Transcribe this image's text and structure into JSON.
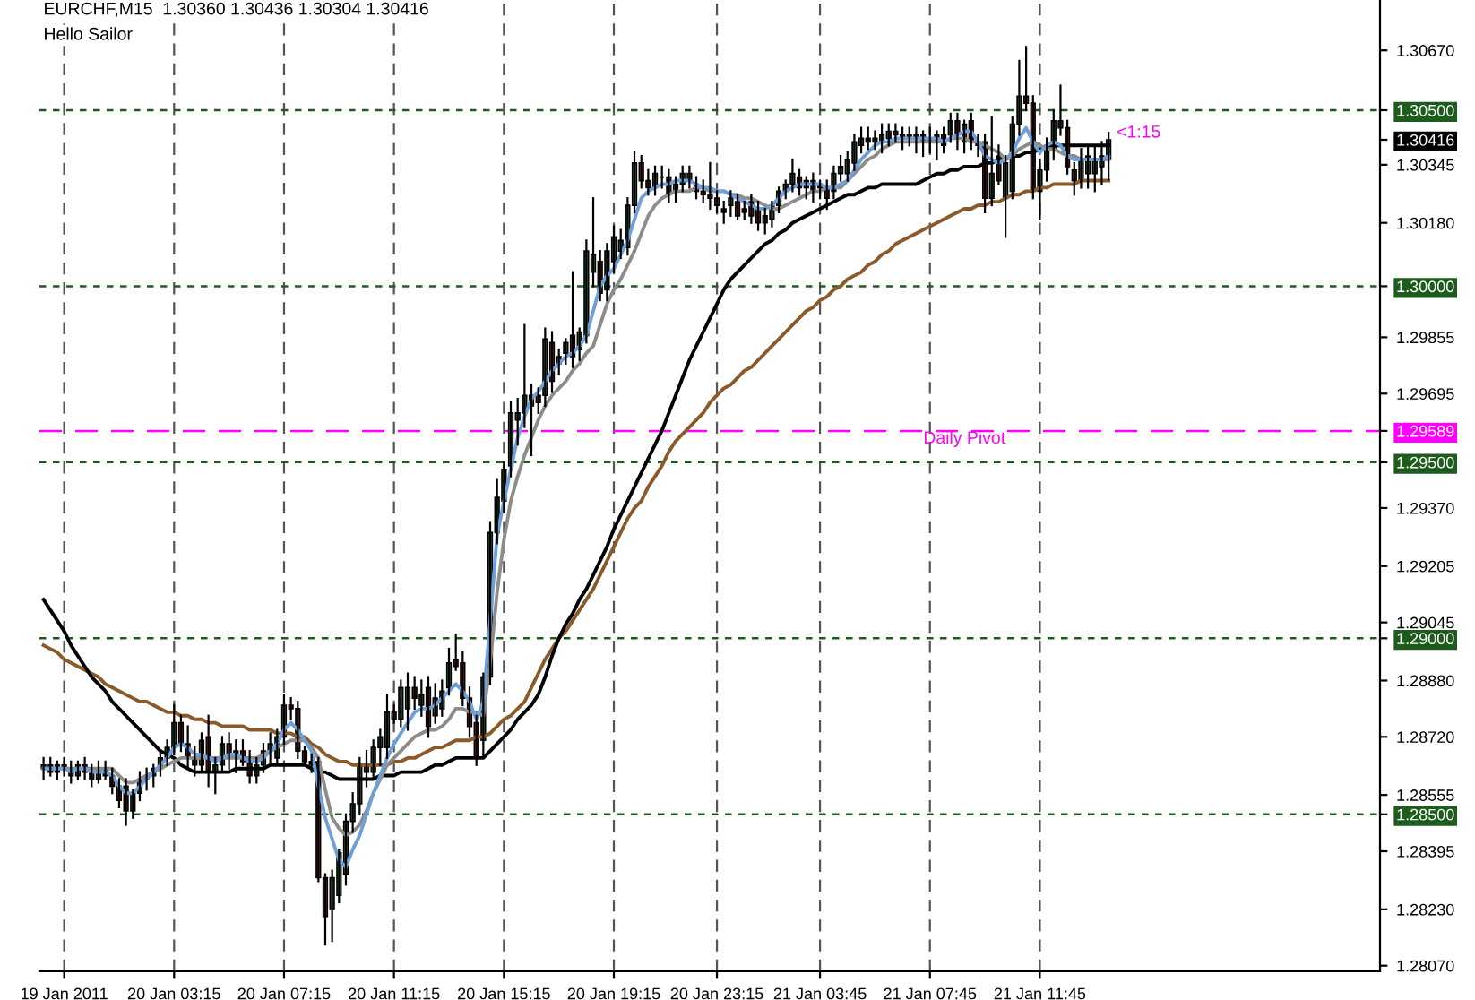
{
  "chart_data": {
    "type": "candlestick",
    "title": "EURCHF,M15  1.30360 1.30436 1.30304 1.30416",
    "subtitle": "Hello Sailor",
    "annotations": [
      "<1:15"
    ],
    "categories": [
      null,
      null,
      null,
      "19 Jan 2011",
      null,
      null,
      null,
      null,
      null,
      null,
      null,
      null,
      null,
      null,
      null,
      null,
      null,
      null,
      null,
      "20 Jan 03:15",
      null,
      null,
      null,
      null,
      null,
      null,
      null,
      null,
      null,
      null,
      null,
      null,
      null,
      null,
      null,
      "20 Jan 07:15",
      null,
      null,
      null,
      null,
      null,
      null,
      null,
      null,
      null,
      null,
      null,
      null,
      null,
      null,
      null,
      "20 Jan 11:15",
      null,
      null,
      null,
      null,
      null,
      null,
      null,
      null,
      null,
      null,
      null,
      null,
      null,
      null,
      null,
      "20 Jan 15:15",
      null,
      null,
      null,
      null,
      null,
      null,
      null,
      null,
      null,
      null,
      null,
      null,
      null,
      null,
      null,
      "20 Jan 19:15",
      null,
      null,
      null,
      null,
      null,
      null,
      null,
      null,
      null,
      null,
      null,
      null,
      null,
      null,
      "20 Jan 23:15",
      null,
      null,
      null,
      null,
      null,
      null,
      null,
      null,
      null,
      null,
      null,
      null,
      null,
      null,
      "21 Jan 03:45",
      null,
      null,
      null,
      null,
      null,
      null,
      null,
      null,
      null,
      null,
      null,
      null,
      null,
      null,
      null,
      "21 Jan 07:45",
      null,
      null,
      null,
      null,
      null,
      null,
      null,
      null,
      null,
      null,
      null,
      null,
      null,
      null,
      null,
      "21 Jan 11:45",
      null,
      null,
      null,
      null,
      null,
      null,
      null,
      null,
      null,
      null,
      null,
      null,
      null,
      null,
      null,
      null,
      null,
      null,
      null,
      null,
      null,
      null,
      null,
      null,
      null,
      null,
      null,
      null,
      null,
      null,
      null,
      null,
      null,
      null,
      null,
      null,
      null,
      null,
      null,
      null,
      null,
      null,
      null,
      null,
      null,
      null,
      null,
      null,
      null
    ],
    "ohlc": [
      [
        1.2863,
        1.2866,
        1.286,
        1.2864
      ],
      [
        1.2864,
        1.2866,
        1.2861,
        1.2862
      ],
      [
        1.2862,
        1.2865,
        1.286,
        1.2864
      ],
      [
        1.2864,
        1.2866,
        1.2861,
        1.2863
      ],
      [
        1.2863,
        1.2865,
        1.2859,
        1.2861
      ],
      [
        1.2861,
        1.2865,
        1.286,
        1.2864
      ],
      [
        1.2864,
        1.2866,
        1.286,
        1.2862
      ],
      [
        1.2862,
        1.2864,
        1.2858,
        1.286
      ],
      [
        1.286,
        1.2865,
        1.2859,
        1.2863
      ],
      [
        1.2863,
        1.2865,
        1.286,
        1.2861
      ],
      [
        1.2861,
        1.2863,
        1.2856,
        1.2858
      ],
      [
        1.2858,
        1.286,
        1.2852,
        1.2854
      ],
      [
        1.2858,
        1.286,
        1.2847,
        1.2851
      ],
      [
        1.2851,
        1.2857,
        1.2849,
        1.2856
      ],
      [
        1.2856,
        1.2862,
        1.2854,
        1.286
      ],
      [
        1.286,
        1.2863,
        1.2857,
        1.2861
      ],
      [
        1.2861,
        1.2864,
        1.2858,
        1.2863
      ],
      [
        1.2863,
        1.2868,
        1.2861,
        1.2866
      ],
      [
        1.2866,
        1.2871,
        1.2864,
        1.2869
      ],
      [
        1.2869,
        1.2881,
        1.2867,
        1.2876
      ],
      [
        1.2876,
        1.2878,
        1.2868,
        1.287
      ],
      [
        1.287,
        1.2875,
        1.2863,
        1.2866
      ],
      [
        1.2866,
        1.2869,
        1.2861,
        1.2864
      ],
      [
        1.2864,
        1.2873,
        1.2862,
        1.2871
      ],
      [
        1.2872,
        1.2878,
        1.2858,
        1.2862
      ],
      [
        1.2862,
        1.2866,
        1.2856,
        1.2864
      ],
      [
        1.2864,
        1.2872,
        1.2862,
        1.287
      ],
      [
        1.287,
        1.2873,
        1.2863,
        1.2866
      ],
      [
        1.2866,
        1.2871,
        1.2862,
        1.2868
      ],
      [
        1.2868,
        1.2871,
        1.2864,
        1.2865
      ],
      [
        1.2865,
        1.2868,
        1.2859,
        1.2861
      ],
      [
        1.2861,
        1.2866,
        1.2859,
        1.2864
      ],
      [
        1.2864,
        1.287,
        1.2862,
        1.2868
      ],
      [
        1.2868,
        1.2873,
        1.2865,
        1.287
      ],
      [
        1.2866,
        1.2874,
        1.2864,
        1.2872
      ],
      [
        1.2872,
        1.2884,
        1.287,
        1.2881
      ],
      [
        1.2881,
        1.2883,
        1.2877,
        1.288
      ],
      [
        1.288,
        1.2882,
        1.2866,
        1.2868
      ],
      [
        1.2868,
        1.2869,
        1.2864,
        1.2865
      ],
      [
        1.2865,
        1.2867,
        1.2862,
        1.2864
      ],
      [
        1.2865,
        1.2866,
        1.2831,
        1.2832
      ],
      [
        1.2832,
        1.2833,
        1.2813,
        1.2821
      ],
      [
        1.2823,
        1.2834,
        1.2814,
        1.2832
      ],
      [
        1.2827,
        1.284,
        1.2825,
        1.2839
      ],
      [
        1.2833,
        1.285,
        1.283,
        1.2848
      ],
      [
        1.2848,
        1.2856,
        1.2845,
        1.2853
      ],
      [
        1.2853,
        1.2866,
        1.285,
        1.2864
      ],
      [
        1.2864,
        1.2868,
        1.2858,
        1.2862
      ],
      [
        1.2862,
        1.2871,
        1.286,
        1.2869
      ],
      [
        1.2869,
        1.2874,
        1.2864,
        1.2872
      ],
      [
        1.2869,
        1.2884,
        1.2866,
        1.2879
      ],
      [
        1.2879,
        1.2881,
        1.2876,
        1.2877
      ],
      [
        1.2877,
        1.2888,
        1.2875,
        1.2886
      ],
      [
        1.288,
        1.289,
        1.2874,
        1.2886
      ],
      [
        1.2886,
        1.2889,
        1.288,
        1.2883
      ],
      [
        1.2881,
        1.2888,
        1.2878,
        1.2884
      ],
      [
        1.2886,
        1.2889,
        1.2872,
        1.2875
      ],
      [
        1.2878,
        1.2887,
        1.2876,
        1.2883
      ],
      [
        1.288,
        1.2888,
        1.2878,
        1.2885
      ],
      [
        1.2886,
        1.2897,
        1.2884,
        1.2893
      ],
      [
        1.2894,
        1.2901,
        1.2891,
        1.2892
      ],
      [
        1.2893,
        1.2896,
        1.2881,
        1.2883
      ],
      [
        1.2883,
        1.2886,
        1.2872,
        1.2875
      ],
      [
        1.2876,
        1.2878,
        1.2864,
        1.2866
      ],
      [
        1.2871,
        1.289,
        1.2866,
        1.2889
      ],
      [
        1.2889,
        1.2933,
        1.2887,
        1.293
      ],
      [
        1.293,
        1.2945,
        1.2927,
        1.294
      ],
      [
        1.2939,
        1.295,
        1.2936,
        1.2948
      ],
      [
        1.2949,
        1.2967,
        1.2946,
        1.2964
      ],
      [
        1.2962,
        1.2968,
        1.2955,
        1.2964
      ],
      [
        1.2964,
        1.2989,
        1.296,
        1.2969
      ],
      [
        1.2966,
        1.2972,
        1.2952,
        1.2969
      ],
      [
        1.2969,
        1.2971,
        1.2964,
        1.2967
      ],
      [
        1.2969,
        1.2988,
        1.2966,
        1.2985
      ],
      [
        1.2984,
        1.2987,
        1.297,
        1.2973
      ],
      [
        1.2978,
        1.2982,
        1.2975,
        1.298
      ],
      [
        1.2981,
        1.2985,
        1.2978,
        1.2984
      ],
      [
        1.2986,
        1.3004,
        1.2977,
        1.298
      ],
      [
        1.2982,
        1.2988,
        1.2979,
        1.2987
      ],
      [
        1.2986,
        1.3013,
        1.2984,
        1.301
      ],
      [
        1.3004,
        1.3025,
        1.3,
        1.3009
      ],
      [
        1.3007,
        1.301,
        1.2996,
        1.2998
      ],
      [
        1.2999,
        1.3012,
        1.2996,
        1.301
      ],
      [
        1.3007,
        1.3017,
        1.3004,
        1.3014
      ],
      [
        1.301,
        1.3016,
        1.3008,
        1.3013
      ],
      [
        1.3011,
        1.3025,
        1.3009,
        1.3023
      ],
      [
        1.3023,
        1.3038,
        1.3021,
        1.3035
      ],
      [
        1.3035,
        1.3037,
        1.3028,
        1.303
      ],
      [
        1.303,
        1.3033,
        1.3026,
        1.3028
      ],
      [
        1.3028,
        1.3034,
        1.3026,
        1.3032
      ],
      [
        1.3031,
        1.3034,
        1.3028,
        1.3031
      ],
      [
        1.3031,
        1.3033,
        1.3024,
        1.3026
      ],
      [
        1.3027,
        1.3031,
        1.3024,
        1.3029
      ],
      [
        1.3029,
        1.3034,
        1.3027,
        1.3032
      ],
      [
        1.303,
        1.3034,
        1.3028,
        1.3032
      ],
      [
        1.3029,
        1.3031,
        1.3025,
        1.3027
      ],
      [
        1.3027,
        1.303,
        1.3024,
        1.3026
      ],
      [
        1.3026,
        1.3035,
        1.3022,
        1.3025
      ],
      [
        1.3025,
        1.3027,
        1.3021,
        1.3023
      ],
      [
        1.3022,
        1.3024,
        1.3018,
        1.3021
      ],
      [
        1.3023,
        1.3027,
        1.302,
        1.3025
      ],
      [
        1.3024,
        1.3026,
        1.3019,
        1.302
      ],
      [
        1.3022,
        1.3024,
        1.3019,
        1.3021
      ],
      [
        1.3024,
        1.3026,
        1.3018,
        1.302
      ],
      [
        1.3022,
        1.3024,
        1.3016,
        1.3018
      ],
      [
        1.302,
        1.3022,
        1.3015,
        1.3018
      ],
      [
        1.3019,
        1.3024,
        1.3017,
        1.3023
      ],
      [
        1.3023,
        1.3028,
        1.3021,
        1.3027
      ],
      [
        1.3027,
        1.303,
        1.3025,
        1.3029
      ],
      [
        1.3029,
        1.3036,
        1.3027,
        1.3032
      ],
      [
        1.3031,
        1.3033,
        1.3026,
        1.3028
      ],
      [
        1.3028,
        1.3031,
        1.3025,
        1.303
      ],
      [
        1.303,
        1.3032,
        1.3024,
        1.3027
      ],
      [
        1.3028,
        1.303,
        1.3025,
        1.3029
      ],
      [
        1.3028,
        1.303,
        1.3022,
        1.3025
      ],
      [
        1.3027,
        1.3034,
        1.3025,
        1.3032
      ],
      [
        1.3032,
        1.3037,
        1.303,
        1.3034
      ],
      [
        1.3032,
        1.3038,
        1.303,
        1.3036
      ],
      [
        1.3035,
        1.3043,
        1.3033,
        1.3041
      ],
      [
        1.304,
        1.3045,
        1.3038,
        1.3042
      ],
      [
        1.3042,
        1.3045,
        1.3039,
        1.3041
      ],
      [
        1.3041,
        1.3044,
        1.3039,
        1.3042
      ],
      [
        1.3041,
        1.3046,
        1.3038,
        1.3043
      ],
      [
        1.3042,
        1.3046,
        1.304,
        1.3044
      ],
      [
        1.3044,
        1.3046,
        1.3041,
        1.3043
      ],
      [
        1.3042,
        1.3045,
        1.3039,
        1.3043
      ],
      [
        1.3043,
        1.3045,
        1.304,
        1.3042
      ],
      [
        1.3042,
        1.3045,
        1.3038,
        1.3043
      ],
      [
        1.3041,
        1.3044,
        1.3037,
        1.3043
      ],
      [
        1.3042,
        1.3045,
        1.3038,
        1.3041
      ],
      [
        1.3041,
        1.3044,
        1.3036,
        1.3043
      ],
      [
        1.3043,
        1.3045,
        1.3038,
        1.304
      ],
      [
        1.3043,
        1.3049,
        1.3041,
        1.3047
      ],
      [
        1.3047,
        1.3049,
        1.3039,
        1.3043
      ],
      [
        1.3041,
        1.3047,
        1.3038,
        1.3046
      ],
      [
        1.3047,
        1.3049,
        1.3039,
        1.3041
      ],
      [
        1.3041,
        1.3043,
        1.3037,
        1.304
      ],
      [
        1.3041,
        1.3043,
        1.3021,
        1.3025
      ],
      [
        1.3025,
        1.3048,
        1.3023,
        1.3032
      ],
      [
        1.3037,
        1.304,
        1.3029,
        1.303
      ],
      [
        1.3025,
        1.3037,
        1.3014,
        1.3035
      ],
      [
        1.3027,
        1.3048,
        1.3025,
        1.3046
      ],
      [
        1.3046,
        1.3064,
        1.3043,
        1.3054
      ],
      [
        1.3054,
        1.3068,
        1.305,
        1.3052
      ],
      [
        1.3052,
        1.3054,
        1.3025,
        1.3027
      ],
      [
        1.3027,
        1.3036,
        1.3019,
        1.3033
      ],
      [
        1.3033,
        1.3042,
        1.303,
        1.304
      ],
      [
        1.3039,
        1.305,
        1.3036,
        1.3047
      ],
      [
        1.3047,
        1.3057,
        1.3043,
        1.3045
      ],
      [
        1.3045,
        1.3047,
        1.3032,
        1.3034
      ],
      [
        1.3033,
        1.3035,
        1.3026,
        1.303
      ],
      [
        1.303,
        1.3039,
        1.3028,
        1.3036
      ],
      [
        1.3032,
        1.304,
        1.3028,
        1.3037
      ],
      [
        1.3032,
        1.304,
        1.3027,
        1.3036
      ],
      [
        1.3034,
        1.3041,
        1.3029,
        1.3037
      ],
      [
        1.3036,
        1.30436,
        1.30304,
        1.30416
      ],
      null,
      null,
      null,
      null,
      null,
      null,
      null,
      null,
      null,
      null,
      null,
      null,
      null,
      null,
      null,
      null,
      null,
      null,
      null,
      null,
      null,
      null,
      null,
      null,
      null,
      null,
      null,
      null,
      null,
      null,
      null,
      null,
      null,
      null,
      null,
      null,
      null,
      null,
      null
    ],
    "series": [
      {
        "type": "line",
        "color": "#8b5a2b",
        "values": [
          1.2898,
          1.2897,
          1.2896,
          1.2894,
          1.2893,
          1.2892,
          1.2891,
          1.289,
          1.2889,
          1.2887,
          1.2886,
          1.2885,
          1.2884,
          1.2883,
          1.2882,
          1.2882,
          1.2881,
          1.288,
          1.2879,
          1.2879,
          1.2878,
          1.2878,
          1.2877,
          1.2877,
          1.2876,
          1.2876,
          1.2875,
          1.2875,
          1.2875,
          1.2875,
          1.2874,
          1.2874,
          1.2874,
          1.2874,
          1.2873,
          1.2873,
          1.2873,
          1.2872,
          1.2872,
          1.287,
          1.2869,
          1.2867,
          1.2866,
          1.2865,
          1.2865,
          1.2864,
          1.2864,
          1.2864,
          1.2864,
          1.2864,
          1.2864,
          1.2865,
          1.2865,
          1.2866,
          1.2866,
          1.2867,
          1.2868,
          1.2869,
          1.2869,
          1.287,
          1.2871,
          1.2871,
          1.2871,
          1.2872,
          1.2872,
          1.2873,
          1.2875,
          1.2877,
          1.2878,
          1.288,
          1.2882,
          1.2886,
          1.289,
          1.2894,
          1.2897,
          1.29,
          1.2902,
          1.2905,
          1.2908,
          1.2911,
          1.2914,
          1.2918,
          1.2922,
          1.2926,
          1.293,
          1.2934,
          1.2937,
          1.2939,
          1.2943,
          1.2946,
          1.2949,
          1.2953,
          1.2956,
          1.2958,
          1.296,
          1.2962,
          1.2964,
          1.2967,
          1.2969,
          1.2971,
          1.2972,
          1.2974,
          1.2976,
          1.2977,
          1.2979,
          1.2981,
          1.2983,
          1.2985,
          1.2987,
          1.2989,
          1.2991,
          1.2993,
          1.2994,
          1.2996,
          1.2997,
          1.2999,
          1.3,
          1.3002,
          1.3003,
          1.3004,
          1.3006,
          1.3007,
          1.3009,
          1.301,
          1.3012,
          1.3013,
          1.3014,
          1.3015,
          1.3016,
          1.3017,
          1.3018,
          1.3019,
          1.302,
          1.3021,
          1.3022,
          1.3022,
          1.3023,
          1.3023,
          1.3024,
          1.3024,
          1.3025,
          1.3026,
          1.3026,
          1.3027,
          1.3027,
          1.3028,
          1.3028,
          1.3029,
          1.3029,
          1.3029,
          1.3029,
          1.303,
          1.303,
          1.303,
          1.303,
          1.303,
          null,
          null,
          null,
          null,
          null,
          null,
          null,
          null,
          null,
          null,
          null,
          null,
          null,
          null,
          null,
          null,
          null,
          null,
          null,
          null,
          null,
          null,
          null,
          null,
          null,
          null,
          null,
          null,
          null,
          null,
          null,
          null,
          null,
          null,
          null,
          null,
          null,
          null,
          null
        ]
      },
      {
        "type": "line",
        "color": "#000000",
        "values": [
          1.2911,
          1.2908,
          1.2905,
          1.2902,
          1.2898,
          1.2895,
          1.2892,
          1.2889,
          1.2887,
          1.2885,
          1.2882,
          1.288,
          1.2878,
          1.2876,
          1.2874,
          1.2872,
          1.287,
          1.2868,
          1.2867,
          1.2866,
          1.2864,
          1.2863,
          1.2862,
          1.2862,
          1.2862,
          1.2862,
          1.2862,
          1.2862,
          1.2863,
          1.2863,
          1.2863,
          1.2863,
          1.2863,
          1.2864,
          1.2864,
          1.2864,
          1.2864,
          1.2864,
          1.2864,
          1.2863,
          1.2862,
          1.2862,
          1.2861,
          1.286,
          1.286,
          1.286,
          1.286,
          1.286,
          1.286,
          1.2861,
          1.2861,
          1.2861,
          1.2862,
          1.2862,
          1.2862,
          1.2862,
          1.2863,
          1.2864,
          1.2864,
          1.2865,
          1.2866,
          1.2866,
          1.2866,
          1.2866,
          1.2866,
          1.2868,
          1.287,
          1.2872,
          1.2874,
          1.2877,
          1.2879,
          1.2881,
          1.2884,
          1.2889,
          1.2895,
          1.29,
          1.2904,
          1.2907,
          1.2911,
          1.2914,
          1.2918,
          1.2922,
          1.2926,
          1.2931,
          1.2935,
          1.2939,
          1.2943,
          1.2947,
          1.2951,
          1.2955,
          1.2959,
          1.2964,
          1.2969,
          1.2974,
          1.2979,
          1.2983,
          1.2987,
          1.2991,
          1.2995,
          1.2999,
          1.3002,
          1.3004,
          1.3006,
          1.3008,
          1.301,
          1.3012,
          1.3013,
          1.3015,
          1.3016,
          1.3018,
          1.3019,
          1.302,
          1.3021,
          1.3022,
          1.3023,
          1.3024,
          1.3025,
          1.3026,
          1.3026,
          1.3027,
          1.3028,
          1.3028,
          1.3029,
          1.3029,
          1.3029,
          1.3029,
          1.3029,
          1.3029,
          1.303,
          1.3031,
          1.3032,
          1.3032,
          1.3033,
          1.3033,
          1.3034,
          1.3034,
          1.3034,
          1.3035,
          1.3035,
          1.3036,
          1.3036,
          1.3037,
          1.3037,
          1.3038,
          1.3038,
          1.3039,
          1.3039,
          1.304,
          1.304,
          1.304,
          1.304,
          1.304,
          1.304,
          1.304,
          1.304,
          1.304,
          null,
          null,
          null,
          null,
          null,
          null,
          null,
          null,
          null,
          null,
          null,
          null,
          null,
          null,
          null,
          null,
          null,
          null,
          null,
          null,
          null,
          null,
          null,
          null,
          null,
          null,
          null,
          null,
          null,
          null,
          null,
          null,
          null,
          null,
          null,
          null,
          null,
          null,
          null
        ]
      },
      {
        "type": "line",
        "color": "#8c8c8c",
        "values": [
          1.2863,
          1.2863,
          1.2863,
          1.2863,
          1.2863,
          1.2863,
          1.2863,
          1.2863,
          1.2863,
          1.2863,
          1.2863,
          1.2861,
          1.2859,
          1.2859,
          1.286,
          1.2861,
          1.2862,
          1.2863,
          1.2864,
          1.2865,
          1.2866,
          1.2866,
          1.2866,
          1.2866,
          1.2866,
          1.2866,
          1.2866,
          1.2866,
          1.2866,
          1.2866,
          1.2866,
          1.2866,
          1.2867,
          1.2868,
          1.2869,
          1.287,
          1.2871,
          1.2871,
          1.2871,
          1.2869,
          1.2866,
          1.2857,
          1.2849,
          1.2846,
          1.2844,
          1.2845,
          1.2847,
          1.2851,
          1.2856,
          1.286,
          1.2864,
          1.2866,
          1.2868,
          1.287,
          1.2872,
          1.2873,
          1.2874,
          1.2874,
          1.2875,
          1.2877,
          1.288,
          1.288,
          1.2879,
          1.2879,
          1.2878,
          1.2893,
          1.2913,
          1.2928,
          1.2939,
          1.2946,
          1.2952,
          1.2957,
          1.2962,
          1.2966,
          1.2969,
          1.2971,
          1.2973,
          1.2976,
          1.2978,
          1.2981,
          1.2983,
          1.2989,
          1.2995,
          1.2999,
          1.3002,
          1.3006,
          1.301,
          1.3015,
          1.302,
          1.3023,
          1.3025,
          1.3026,
          1.3027,
          1.3027,
          1.3027,
          1.3028,
          1.3028,
          1.3027,
          1.3027,
          1.3027,
          1.3026,
          1.3026,
          1.3025,
          1.3025,
          1.3024,
          1.3023,
          1.3022,
          1.3022,
          1.3023,
          1.3024,
          1.3025,
          1.3026,
          1.3027,
          1.3027,
          1.3028,
          1.3028,
          1.3028,
          1.303,
          1.3032,
          1.3034,
          1.3036,
          1.3037,
          1.3039,
          1.304,
          1.3041,
          1.3041,
          1.3041,
          1.3041,
          1.3041,
          1.3041,
          1.3041,
          1.3041,
          1.3042,
          1.3042,
          1.3042,
          1.3041,
          1.3041,
          1.304,
          1.3039,
          1.3038,
          1.3036,
          1.3037,
          1.3039,
          1.304,
          1.3041,
          1.304,
          1.3039,
          1.3039,
          1.3038,
          1.3037,
          1.3037,
          1.3036,
          1.3036,
          1.3036,
          1.3036,
          1.3036,
          null,
          null,
          null,
          null,
          null,
          null,
          null,
          null,
          null,
          null,
          null,
          null,
          null,
          null,
          null,
          null,
          null,
          null,
          null,
          null,
          null,
          null,
          null,
          null,
          null,
          null,
          null,
          null,
          null,
          null,
          null,
          null,
          null,
          null,
          null,
          null,
          null,
          null,
          null
        ]
      },
      {
        "type": "line",
        "color": "#6f9fd8",
        "values": [
          1.2863,
          1.2863,
          1.2863,
          1.2863,
          1.2862,
          1.2863,
          1.2863,
          1.2862,
          1.2862,
          1.2862,
          1.2861,
          1.2858,
          1.2856,
          1.2856,
          1.2858,
          1.286,
          1.2862,
          1.2864,
          1.2866,
          1.2869,
          1.287,
          1.2869,
          1.2867,
          1.2867,
          1.2866,
          1.2865,
          1.2866,
          1.2867,
          1.2867,
          1.2866,
          1.2865,
          1.2865,
          1.2866,
          1.2868,
          1.287,
          1.2874,
          1.2876,
          1.2874,
          1.2871,
          1.2868,
          1.2858,
          1.2849,
          1.2843,
          1.2837,
          1.2835,
          1.284,
          1.2844,
          1.285,
          1.2856,
          1.2861,
          1.2866,
          1.287,
          1.2873,
          1.2876,
          1.2879,
          1.288,
          1.288,
          1.2881,
          1.2883,
          1.2885,
          1.2887,
          1.2885,
          1.2882,
          1.2877,
          1.2882,
          1.2905,
          1.2929,
          1.2939,
          1.2948,
          1.2957,
          1.2963,
          1.2968,
          1.297,
          1.2973,
          1.2976,
          1.2978,
          1.298,
          1.2981,
          1.2983,
          1.2986,
          1.2993,
          1.3,
          1.3003,
          1.3005,
          1.3009,
          1.3013,
          1.3019,
          1.3025,
          1.3027,
          1.3028,
          1.3029,
          1.3029,
          1.303,
          1.303,
          1.303,
          1.3029,
          1.3028,
          1.3028,
          1.3027,
          1.3027,
          1.3026,
          1.3025,
          1.3024,
          1.3023,
          1.3022,
          1.3022,
          1.3023,
          1.3025,
          1.3027,
          1.3028,
          1.3029,
          1.3029,
          1.3029,
          1.3029,
          1.3028,
          1.3028,
          1.3029,
          1.303,
          1.3033,
          1.3036,
          1.3038,
          1.304,
          1.3041,
          1.3041,
          1.3042,
          1.3042,
          1.3042,
          1.3042,
          1.3042,
          1.3042,
          1.3042,
          1.3041,
          1.3042,
          1.3043,
          1.3044,
          1.3044,
          1.3041,
          1.3037,
          1.3036,
          1.3035,
          1.3036,
          1.3038,
          1.3042,
          1.3045,
          1.3041,
          1.3038,
          1.304,
          1.3041,
          1.304,
          1.3037,
          1.3036,
          1.3036,
          1.3036,
          1.3036,
          1.3036,
          1.3037,
          null,
          null,
          null,
          null,
          null,
          null,
          null,
          null,
          null,
          null,
          null,
          null,
          null,
          null,
          null,
          null,
          null,
          null,
          null,
          null,
          null,
          null,
          null,
          null,
          null,
          null,
          null,
          null,
          null,
          null,
          null,
          null,
          null,
          null,
          null,
          null,
          null,
          null,
          null
        ]
      }
    ],
    "ylim": [
      1.28054,
      1.30813
    ],
    "yticks": [
      {
        "value": 1.3067,
        "label": "1.30670"
      },
      {
        "value": 1.305,
        "label": "1.30500"
      },
      {
        "value": 1.30416,
        "label": "1.30416"
      },
      {
        "value": 1.30345,
        "label": "1.30345"
      },
      {
        "value": 1.3018,
        "label": "1.30180"
      },
      {
        "value": 1.3,
        "label": "1.30000"
      },
      {
        "value": 1.29855,
        "label": "1.29855"
      },
      {
        "value": 1.29695,
        "label": "1.29695"
      },
      {
        "value": 1.29589,
        "label": "1.29589"
      },
      {
        "value": 1.295,
        "label": "1.29500"
      },
      {
        "value": 1.2937,
        "label": "1.29370"
      },
      {
        "value": 1.29205,
        "label": "1.29205"
      },
      {
        "value": 1.29045,
        "label": "1.29045"
      },
      {
        "value": 1.29,
        "label": "1.29000"
      },
      {
        "value": 1.2888,
        "label": "1.28880"
      },
      {
        "value": 1.2872,
        "label": "1.28720"
      },
      {
        "value": 1.28555,
        "label": "1.28555"
      },
      {
        "value": 1.285,
        "label": "1.28500"
      },
      {
        "value": 1.28395,
        "label": "1.28395"
      },
      {
        "value": 1.2823,
        "label": "1.28230"
      },
      {
        "value": 1.2807,
        "label": "1.28070"
      }
    ],
    "ref_lines": [
      {
        "axis": "y",
        "value": 1.305,
        "color": "#1e5c1e",
        "line_style": "dashed"
      },
      {
        "axis": "y",
        "value": 1.3,
        "color": "#1e5c1e",
        "line_style": "dashed"
      },
      {
        "axis": "y",
        "value": 1.29589,
        "label": "Daily Pivot",
        "color": "#ff00ff",
        "line_style": "dashed"
      },
      {
        "axis": "y",
        "value": 1.295,
        "color": "#1e5c1e",
        "line_style": "dashed"
      },
      {
        "axis": "y",
        "value": 1.29,
        "color": "#1e5c1e",
        "line_style": "dashed"
      },
      {
        "axis": "y",
        "value": 1.285,
        "color": "#1e5c1e",
        "line_style": "dashed"
      }
    ],
    "grid": "x",
    "legend": false
  }
}
